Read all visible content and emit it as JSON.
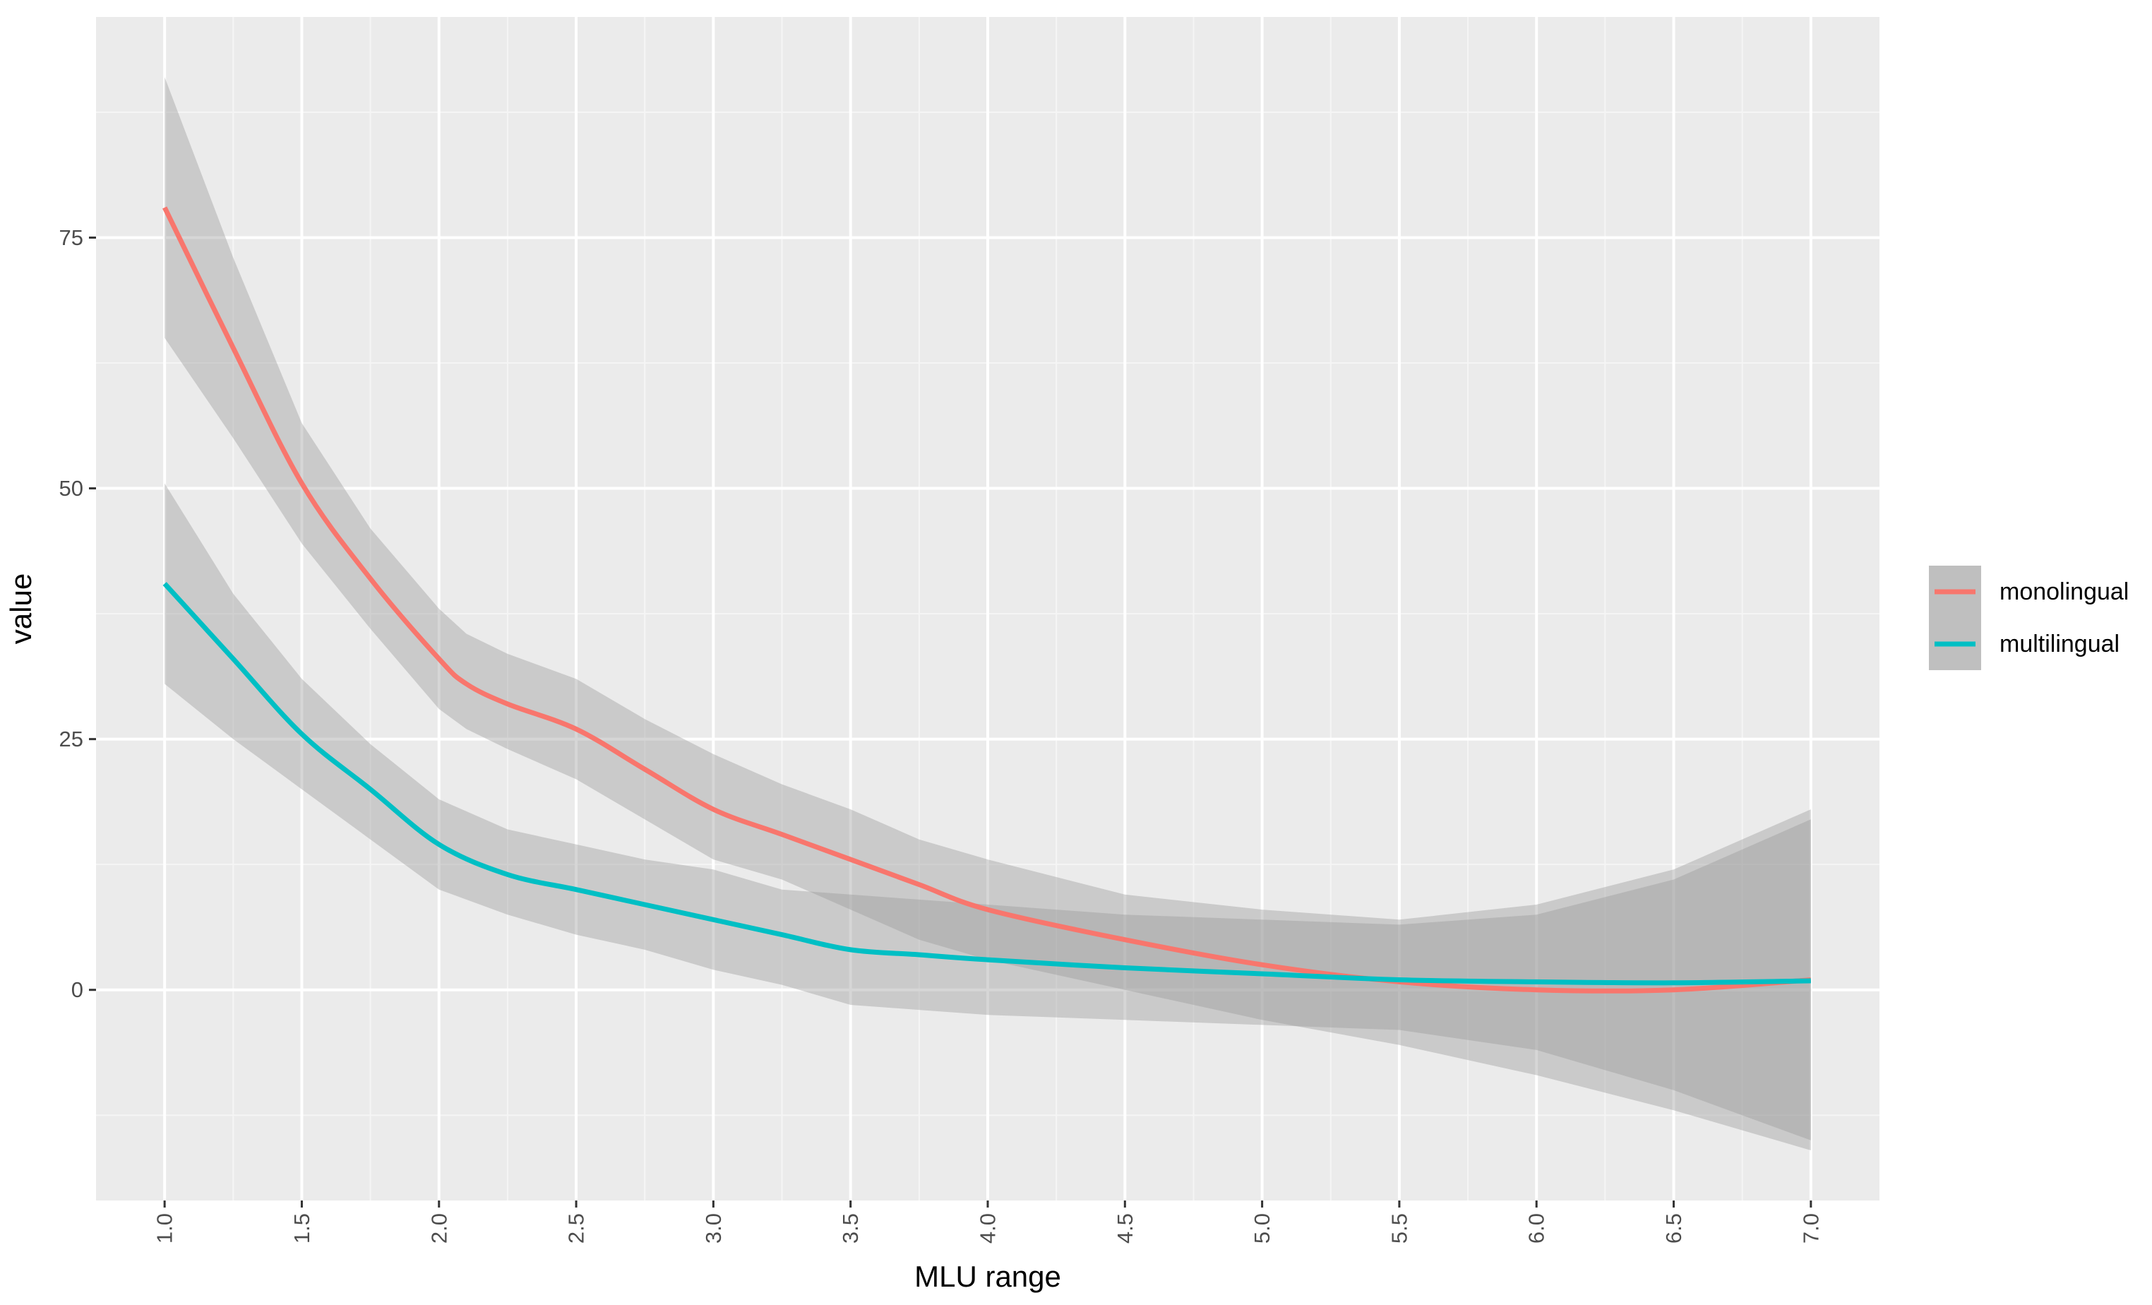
{
  "chart_data": {
    "type": "line",
    "title": "",
    "xlabel": "MLU range",
    "ylabel": "value",
    "xlim": [
      0.75,
      7.25
    ],
    "ylim": [
      -21,
      97
    ],
    "x_ticks": [
      "1.0",
      "1.5",
      "2.0",
      "2.5",
      "3.0",
      "3.5",
      "4.0",
      "4.5",
      "5.0",
      "5.5",
      "6.0",
      "6.5",
      "7.0"
    ],
    "y_ticks": [
      "0",
      "25",
      "50",
      "75"
    ],
    "grid": true,
    "legend_position": "right",
    "series": [
      {
        "name": "monolingual",
        "color": "#F8766D",
        "x": [
          1.0,
          1.25,
          1.5,
          1.75,
          2.0,
          2.1,
          2.25,
          2.5,
          2.75,
          3.0,
          3.25,
          3.5,
          3.75,
          4.0,
          4.5,
          5.0,
          5.5,
          6.0,
          6.5,
          7.0
        ],
        "y": [
          78,
          64,
          50.5,
          41,
          33,
          30.5,
          28.5,
          26,
          22,
          18,
          15.5,
          13,
          10.5,
          8,
          5,
          2.5,
          0.8,
          0,
          0,
          1
        ],
        "lower": [
          65,
          55,
          44.5,
          36,
          28,
          26,
          24,
          21,
          17,
          13,
          11,
          8,
          5,
          3,
          0,
          -3,
          -5.5,
          -8.5,
          -12,
          -16
        ],
        "upper": [
          91,
          73,
          56.5,
          46,
          38,
          35.5,
          33.5,
          31,
          27,
          23.5,
          20.5,
          18,
          15,
          13,
          9.5,
          8,
          7,
          8.5,
          12,
          18
        ]
      },
      {
        "name": "multilingual",
        "color": "#00BFC4",
        "x": [
          1.0,
          1.25,
          1.5,
          1.75,
          2.0,
          2.25,
          2.5,
          2.75,
          3.0,
          3.25,
          3.5,
          3.75,
          4.0,
          4.5,
          5.0,
          5.5,
          6.0,
          6.5,
          7.0
        ],
        "y": [
          40.5,
          33,
          25.5,
          20,
          14.5,
          11.5,
          10,
          8.5,
          7,
          5.5,
          4,
          3.5,
          3,
          2.2,
          1.6,
          1,
          0.8,
          0.7,
          0.9
        ],
        "lower": [
          30.5,
          25,
          20,
          15,
          10,
          7.5,
          5.5,
          4,
          2,
          0.5,
          -1.5,
          -2,
          -2.5,
          -3,
          -3.5,
          -4,
          -6,
          -10,
          -15
        ],
        "upper": [
          50.5,
          39.5,
          31,
          24.5,
          19,
          16,
          14.5,
          13,
          12,
          10,
          9.5,
          9,
          8.5,
          7.5,
          7,
          6.5,
          7.5,
          11,
          17
        ]
      }
    ]
  }
}
